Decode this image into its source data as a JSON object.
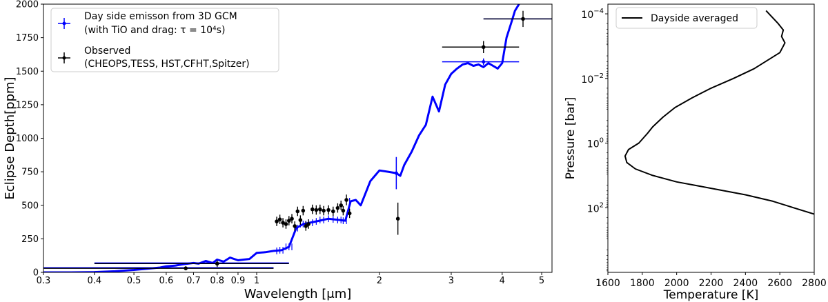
{
  "chart_data": [
    {
      "type": "line",
      "title": "",
      "xlabel": "Wavelength [$\\mu$m]",
      "ylabel": "Eclipse Depth[ppm]",
      "xscale": "log",
      "xlim": [
        0.3,
        5.3
      ],
      "ylim": [
        0,
        2000
      ],
      "x_ticks": [
        0.3,
        0.4,
        0.5,
        0.6,
        0.7,
        0.8,
        0.9,
        1,
        2,
        3,
        4,
        5
      ],
      "x_tick_labels": [
        "0.3",
        "0.4",
        "0.5",
        "0.6",
        "0.7",
        "0.8",
        "0.9",
        "1",
        "2",
        "3",
        "4",
        "5"
      ],
      "y_ticks": [
        0,
        250,
        500,
        750,
        1000,
        1250,
        1500,
        1750,
        2000
      ],
      "y_tick_labels": [
        "0",
        "250",
        "500",
        "750",
        "1000",
        "1250",
        "1500",
        "1750",
        "2000"
      ],
      "legend_position": "top-left",
      "legend": [
        {
          "label": "Day side emisson from 3D GCM",
          "label2": "(with TiO and drag: τ = 10⁴s)",
          "color": "#0000ff"
        },
        {
          "label": "Observed",
          "label2": "(CHEOPS,TESS, HST,CFHT,Spitzer)",
          "color": "#000000"
        }
      ],
      "model_color": "#0000ff",
      "observed_color": "#000000",
      "series": [
        {
          "name": "Day side emisson from 3D GCM",
          "x": [
            0.3,
            0.35,
            0.4,
            0.45,
            0.5,
            0.55,
            0.58,
            0.6,
            0.63,
            0.66,
            0.7,
            0.72,
            0.75,
            0.78,
            0.8,
            0.83,
            0.86,
            0.9,
            0.93,
            0.96,
            1.0,
            1.05,
            1.1,
            1.15,
            1.2,
            1.25,
            1.3,
            1.35,
            1.4,
            1.45,
            1.5,
            1.55,
            1.6,
            1.65,
            1.7,
            1.75,
            1.8,
            1.9,
            2.0,
            2.1,
            2.2,
            2.25,
            2.3,
            2.4,
            2.5,
            2.6,
            2.7,
            2.8,
            2.9,
            3.0,
            3.1,
            3.2,
            3.3,
            3.4,
            3.5,
            3.6,
            3.7,
            3.8,
            3.9,
            4.0,
            4.1,
            4.2,
            4.3,
            4.4
          ],
          "y": [
            0,
            0,
            2,
            8,
            18,
            30,
            36,
            45,
            50,
            60,
            70,
            65,
            85,
            70,
            95,
            80,
            110,
            90,
            95,
            100,
            145,
            150,
            160,
            165,
            190,
            330,
            360,
            370,
            380,
            390,
            400,
            395,
            390,
            385,
            530,
            540,
            500,
            680,
            760,
            750,
            740,
            720,
            800,
            900,
            1020,
            1100,
            1310,
            1200,
            1400,
            1480,
            1520,
            1550,
            1560,
            1540,
            1550,
            1530,
            1560,
            1540,
            1520,
            1560,
            1750,
            1850,
            1950,
            2000
          ]
        }
      ],
      "model_bins": [
        {
          "x": 2.2,
          "y": 740,
          "xerr": [
            2.2,
            2.2
          ],
          "yerr": 120
        },
        {
          "x": 3.6,
          "y": 1570,
          "xerr": [
            2.85,
            4.4
          ],
          "yerr": 25
        },
        {
          "x": 4.5,
          "y": 1890,
          "xerr": [
            3.6,
            5.3
          ],
          "yerr": 0
        }
      ],
      "model_hlines": [
        {
          "x0": 0.4,
          "x1": 1.2,
          "y": 70
        },
        {
          "x0": 0.3,
          "x1": 1.1,
          "y": 35
        }
      ],
      "observed": [
        {
          "x": 0.67,
          "y": 30,
          "xerr": [
            0.3,
            1.1
          ],
          "yerr": 15
        },
        {
          "x": 0.8,
          "y": 65,
          "xerr": [
            0.4,
            1.2
          ],
          "yerr": 25
        },
        {
          "x": 1.12,
          "y": 380,
          "yerr": 35
        },
        {
          "x": 1.14,
          "y": 395,
          "yerr": 35
        },
        {
          "x": 1.16,
          "y": 370,
          "yerr": 35
        },
        {
          "x": 1.18,
          "y": 360,
          "yerr": 35
        },
        {
          "x": 1.2,
          "y": 385,
          "yerr": 35
        },
        {
          "x": 1.22,
          "y": 400,
          "yerr": 35
        },
        {
          "x": 1.24,
          "y": 345,
          "yerr": 35
        },
        {
          "x": 1.26,
          "y": 455,
          "yerr": 35
        },
        {
          "x": 1.28,
          "y": 390,
          "yerr": 35
        },
        {
          "x": 1.3,
          "y": 460,
          "yerr": 35
        },
        {
          "x": 1.32,
          "y": 345,
          "yerr": 35
        },
        {
          "x": 1.34,
          "y": 360,
          "yerr": 35
        },
        {
          "x": 1.37,
          "y": 470,
          "yerr": 35
        },
        {
          "x": 1.4,
          "y": 465,
          "yerr": 35
        },
        {
          "x": 1.43,
          "y": 470,
          "yerr": 35
        },
        {
          "x": 1.46,
          "y": 460,
          "yerr": 35
        },
        {
          "x": 1.5,
          "y": 465,
          "yerr": 35
        },
        {
          "x": 1.54,
          "y": 455,
          "yerr": 35
        },
        {
          "x": 1.58,
          "y": 480,
          "yerr": 35
        },
        {
          "x": 1.61,
          "y": 500,
          "yerr": 35
        },
        {
          "x": 1.63,
          "y": 460,
          "yerr": 35
        },
        {
          "x": 1.66,
          "y": 540,
          "yerr": 40
        },
        {
          "x": 1.69,
          "y": 440,
          "yerr": 35
        },
        {
          "x": 2.22,
          "y": 400,
          "yerr": 120
        },
        {
          "x": 3.6,
          "y": 1680,
          "xerr": [
            2.85,
            4.4
          ],
          "yerr": 45
        },
        {
          "x": 4.5,
          "y": 1890,
          "xerr": [
            3.6,
            5.3
          ],
          "yerr": 60
        }
      ]
    },
    {
      "type": "line",
      "title": "",
      "xlabel": "Temperature [K]",
      "ylabel": "Pressure [bar]",
      "yscale": "log",
      "yinverted": true,
      "xlim": [
        1600,
        2800
      ],
      "ylim_log10": [
        4,
        -4.3
      ],
      "x_ticks": [
        1600,
        1800,
        2000,
        2200,
        2400,
        2600,
        2800
      ],
      "x_tick_labels": [
        "1600",
        "1800",
        "2000",
        "2200",
        "2400",
        "2600",
        "2800"
      ],
      "y_ticks_log10": [
        -4,
        -2,
        0,
        2
      ],
      "y_tick_labels": [
        "10",
        "10",
        "10",
        "10"
      ],
      "y_tick_exponents": [
        "−4",
        "−2",
        "0",
        "2"
      ],
      "legend_position": "top-left",
      "legend": [
        {
          "label": "Dayside averaged",
          "color": "#000000"
        }
      ],
      "series": [
        {
          "name": "Dayside averaged",
          "color": "#000000",
          "temperature": [
            2520,
            2590,
            2620,
            2610,
            2630,
            2600,
            2540,
            2450,
            2330,
            2200,
            2090,
            1990,
            1920,
            1880,
            1860,
            1830,
            1780,
            1720,
            1700,
            1710,
            1760,
            1860,
            2000,
            2200,
            2400,
            2560,
            2680,
            2800
          ],
          "log10_pressure": [
            -4.1,
            -3.7,
            -3.5,
            -3.3,
            -3.1,
            -2.8,
            -2.6,
            -2.3,
            -2.0,
            -1.7,
            -1.4,
            -1.1,
            -0.8,
            -0.6,
            -0.5,
            -0.3,
            0.0,
            0.2,
            0.4,
            0.6,
            0.8,
            1.0,
            1.2,
            1.4,
            1.6,
            1.8,
            2.0,
            2.2
          ]
        }
      ]
    }
  ]
}
